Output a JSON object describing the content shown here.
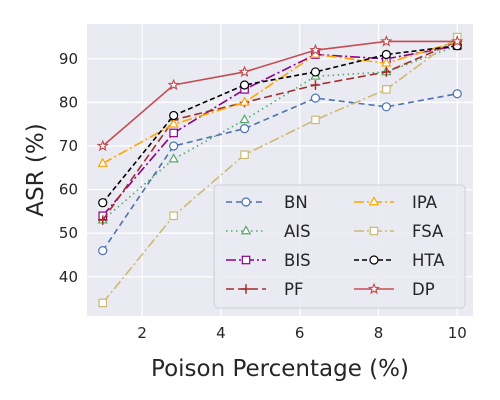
{
  "chart_data": {
    "type": "line",
    "xlabel": "Poison Percentage (%)",
    "ylabel": "ASR (%)",
    "xlim": [
      0.6,
      10.4
    ],
    "ylim": [
      31,
      98
    ],
    "xticks": [
      2,
      4,
      6,
      8,
      10
    ],
    "yticks": [
      40,
      50,
      60,
      70,
      80,
      90
    ],
    "grid": true,
    "legend": {
      "placement": "lower-right",
      "columns": 2
    },
    "x": [
      1,
      2.8,
      4.6,
      6.4,
      8.2,
      10
    ],
    "series": [
      {
        "name": "BN",
        "values": [
          46,
          70,
          74,
          81,
          79,
          82
        ],
        "color": "#4c72b0",
        "dash": "6,4",
        "marker": "circle"
      },
      {
        "name": "AIS",
        "values": [
          53,
          67,
          76,
          86,
          87,
          93
        ],
        "color": "#55a868",
        "dash": "1.5,3.5",
        "marker": "triangle"
      },
      {
        "name": "BIS",
        "values": [
          54,
          73,
          83,
          91,
          90,
          93
        ],
        "color": "#8b008b",
        "dash": "10,3,2,3",
        "marker": "square"
      },
      {
        "name": "PF",
        "values": [
          53,
          76,
          80,
          84,
          87,
          94
        ],
        "color": "#a0302e",
        "dash": "8,4",
        "marker": "plus"
      },
      {
        "name": "IPA",
        "values": [
          66,
          75,
          80,
          91,
          89,
          94
        ],
        "color": "#ffa500",
        "dash": "10,3,2,3",
        "marker": "triangle"
      },
      {
        "name": "FSA",
        "values": [
          34,
          54,
          68,
          76,
          83,
          95
        ],
        "color": "#ccb974",
        "dash": "10,3,2,3",
        "marker": "square"
      },
      {
        "name": "HTA",
        "values": [
          57,
          77,
          84,
          87,
          91,
          93
        ],
        "color": "#000000",
        "dash": "5,3",
        "marker": "circle"
      },
      {
        "name": "DP",
        "values": [
          70,
          84,
          87,
          92,
          94,
          94
        ],
        "color": "#c44e52",
        "dash": "",
        "marker": "star"
      }
    ]
  }
}
